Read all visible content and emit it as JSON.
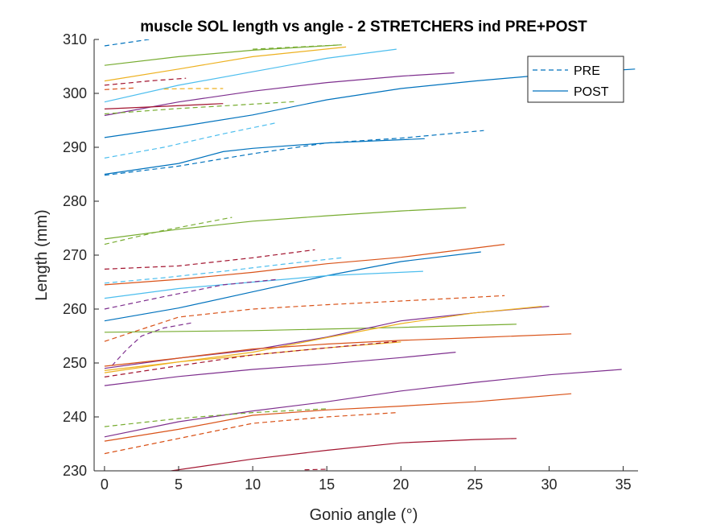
{
  "chart_data": {
    "type": "line",
    "title": "muscle SOL length vs angle - 2 STRETCHERS ind PRE+POST",
    "xlabel": "Gonio angle (°)",
    "ylabel": "Length (mm)",
    "xlim": [
      -0.7,
      36
    ],
    "ylim": [
      230,
      310
    ],
    "xticks": [
      0,
      5,
      10,
      15,
      20,
      25,
      30,
      35
    ],
    "yticks": [
      230,
      240,
      250,
      260,
      270,
      280,
      290,
      300,
      310
    ],
    "grid": false,
    "legend": {
      "position": "top-right",
      "entries": [
        {
          "label": "PRE",
          "style": "dashed",
          "color": "#0072BD"
        },
        {
          "label": "POST",
          "style": "solid",
          "color": "#0072BD"
        }
      ]
    },
    "series": [
      {
        "style": "dashed",
        "color": "#0072BD",
        "x": [
          0,
          3
        ],
        "y": [
          308.8,
          310
        ]
      },
      {
        "style": "solid",
        "color": "#77AC30",
        "x": [
          0,
          5,
          10,
          16
        ],
        "y": [
          305.2,
          306.8,
          308.0,
          309.0
        ]
      },
      {
        "style": "dashed",
        "color": "#77AC30",
        "x": [
          10,
          16
        ],
        "y": [
          308.2,
          309.0
        ]
      },
      {
        "style": "solid",
        "color": "#EDB120",
        "x": [
          0,
          5,
          10,
          16.3
        ],
        "y": [
          302.3,
          304.5,
          306.8,
          308.6
        ]
      },
      {
        "style": "solid",
        "color": "#4DBEEE",
        "x": [
          0,
          5,
          10,
          15,
          19.7
        ],
        "y": [
          298.4,
          301.5,
          304.0,
          306.5,
          308.2
        ]
      },
      {
        "style": "dashed",
        "color": "#A2142F",
        "x": [
          0,
          3,
          5.5
        ],
        "y": [
          301.5,
          302.3,
          302.8
        ]
      },
      {
        "style": "dashed",
        "color": "#D95319",
        "x": [
          0,
          2
        ],
        "y": [
          300.7,
          301.0
        ]
      },
      {
        "style": "dashed",
        "color": "#EDB120",
        "x": [
          4,
          6,
          8
        ],
        "y": [
          300.8,
          300.9,
          300.9
        ]
      },
      {
        "style": "solid",
        "color": "#7E2F8E",
        "x": [
          0,
          5,
          10,
          15,
          20,
          23.6
        ],
        "y": [
          295.9,
          298.4,
          300.4,
          302.0,
          303.2,
          303.8
        ]
      },
      {
        "style": "solid",
        "color": "#A2142F",
        "x": [
          0,
          4,
          8
        ],
        "y": [
          297.1,
          297.6,
          298.1
        ]
      },
      {
        "style": "dashed",
        "color": "#77AC30",
        "x": [
          0,
          5,
          10,
          13
        ],
        "y": [
          296.2,
          297.2,
          298.0,
          298.5
        ]
      },
      {
        "style": "solid",
        "color": "#0072BD",
        "x": [
          0,
          5,
          10,
          15,
          20,
          25,
          30,
          35.8
        ],
        "y": [
          291.8,
          293.8,
          296.0,
          298.8,
          300.9,
          302.3,
          303.5,
          304.5
        ]
      },
      {
        "style": "dashed",
        "color": "#4DBEEE",
        "x": [
          0,
          4,
          8,
          11.7
        ],
        "y": [
          288.0,
          290.0,
          292.5,
          294.6
        ]
      },
      {
        "style": "dashed",
        "color": "#0072BD",
        "x": [
          0,
          5,
          10,
          15,
          20,
          25.6
        ],
        "y": [
          284.8,
          286.5,
          288.8,
          290.8,
          291.7,
          293.1
        ]
      },
      {
        "style": "solid",
        "color": "#0072BD",
        "x": [
          0,
          5,
          8,
          10,
          15,
          20,
          21.6
        ],
        "y": [
          285.0,
          287.0,
          289.2,
          289.8,
          290.8,
          291.4,
          291.6
        ]
      },
      {
        "style": "solid",
        "color": "#77AC30",
        "x": [
          0,
          5,
          10,
          15,
          20,
          24.4
        ],
        "y": [
          273.0,
          274.8,
          276.3,
          277.3,
          278.2,
          278.8
        ]
      },
      {
        "style": "dashed",
        "color": "#77AC30",
        "x": [
          0,
          4,
          8.6
        ],
        "y": [
          272.0,
          274.6,
          277.0
        ]
      },
      {
        "style": "dashed",
        "color": "#A2142F",
        "x": [
          0,
          5,
          10,
          14.2
        ],
        "y": [
          267.4,
          268.0,
          269.5,
          271.0
        ]
      },
      {
        "style": "solid",
        "color": "#D95319",
        "x": [
          0,
          5,
          10,
          15,
          20,
          27
        ],
        "y": [
          264.5,
          265.5,
          266.8,
          268.4,
          269.6,
          272.0
        ]
      },
      {
        "style": "solid",
        "color": "#0072BD",
        "x": [
          0,
          5,
          10,
          15,
          20,
          25.4
        ],
        "y": [
          257.8,
          260.2,
          263.2,
          266.2,
          268.8,
          270.6
        ]
      },
      {
        "style": "solid",
        "color": "#4DBEEE",
        "x": [
          0,
          5,
          10,
          15,
          21.5
        ],
        "y": [
          262.0,
          263.8,
          265.0,
          266.2,
          267.0
        ]
      },
      {
        "style": "dashed",
        "color": "#4DBEEE",
        "x": [
          0,
          4,
          8,
          12,
          16
        ],
        "y": [
          264.8,
          265.8,
          267.0,
          268.3,
          269.5
        ]
      },
      {
        "style": "dashed",
        "color": "#7E2F8E",
        "x": [
          0,
          4,
          8,
          11.7
        ],
        "y": [
          260.0,
          262.3,
          264.5,
          265.5
        ]
      },
      {
        "style": "dashed",
        "color": "#D95319",
        "x": [
          0,
          5,
          10,
          15,
          20,
          25,
          27
        ],
        "y": [
          254.0,
          258.5,
          260.0,
          260.8,
          261.5,
          262.2,
          262.5
        ]
      },
      {
        "style": "solid",
        "color": "#77AC30",
        "x": [
          0,
          10,
          20,
          27.8
        ],
        "y": [
          255.7,
          256.0,
          256.6,
          257.2
        ]
      },
      {
        "style": "solid",
        "color": "#7E2F8E",
        "x": [
          0,
          5,
          10,
          15,
          20,
          25,
          30
        ],
        "y": [
          249.0,
          250.9,
          252.4,
          254.8,
          257.8,
          259.3,
          260.5
        ]
      },
      {
        "style": "dashed",
        "color": "#7E2F8E",
        "x": [
          0.5,
          1.5,
          2.5,
          4,
          6
        ],
        "y": [
          249.5,
          252.5,
          255.0,
          256.5,
          257.5
        ]
      },
      {
        "style": "solid",
        "color": "#EDB120",
        "x": [
          0,
          5,
          10,
          15,
          20,
          25,
          29.5
        ],
        "y": [
          248.2,
          250.2,
          252.0,
          254.7,
          257.3,
          259.3,
          260.5
        ]
      },
      {
        "style": "solid",
        "color": "#D95319",
        "x": [
          0,
          5,
          10,
          15,
          20,
          25,
          31.5
        ],
        "y": [
          249.4,
          250.9,
          252.6,
          253.5,
          254.2,
          254.7,
          255.4
        ]
      },
      {
        "style": "solid",
        "color": "#EDB120",
        "x": [
          0,
          5,
          10,
          15,
          20
        ],
        "y": [
          248.6,
          250.2,
          251.5,
          252.8,
          253.9
        ]
      },
      {
        "style": "dashed",
        "color": "#A2142F",
        "x": [
          0,
          5,
          10,
          15,
          19.8
        ],
        "y": [
          247.4,
          249.5,
          251.5,
          252.8,
          254.0
        ]
      },
      {
        "style": "solid",
        "color": "#7E2F8E",
        "x": [
          0,
          5,
          10,
          15,
          20,
          23.7
        ],
        "y": [
          245.8,
          247.5,
          248.8,
          249.8,
          251.0,
          252.0
        ]
      },
      {
        "style": "solid",
        "color": "#7E2F8E",
        "x": [
          0,
          5,
          10,
          15,
          20,
          25,
          30,
          34.9
        ],
        "y": [
          236.3,
          239.1,
          241.1,
          242.8,
          244.8,
          246.4,
          247.8,
          248.8
        ]
      },
      {
        "style": "solid",
        "color": "#D95319",
        "x": [
          0,
          5,
          10,
          15,
          20,
          25,
          31.5
        ],
        "y": [
          235.5,
          237.7,
          240.3,
          241.3,
          242.0,
          242.8,
          244.3
        ]
      },
      {
        "style": "dashed",
        "color": "#77AC30",
        "x": [
          0,
          5,
          10,
          15
        ],
        "y": [
          238.2,
          239.7,
          240.8,
          241.5
        ]
      },
      {
        "style": "dashed",
        "color": "#D95319",
        "x": [
          0,
          5,
          10,
          15,
          19.8
        ],
        "y": [
          233.2,
          236.0,
          238.8,
          240.0,
          240.8
        ]
      },
      {
        "style": "solid",
        "color": "#A2142F",
        "x": [
          4,
          10,
          15,
          20,
          25,
          27.8
        ],
        "y": [
          229.8,
          232.2,
          233.8,
          235.2,
          235.8,
          236.0
        ]
      },
      {
        "style": "dashed",
        "color": "#A2142F",
        "x": [
          13.5,
          15
        ],
        "y": [
          230.2,
          230.3
        ]
      }
    ]
  }
}
